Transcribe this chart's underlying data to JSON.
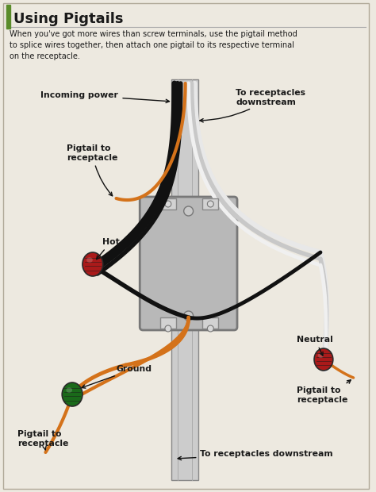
{
  "title": "Using Pigtails",
  "subtitle": "When you've got more wires than screw terminals, use the pigtail method\nto splice wires together, then attach one pigtail to its respective terminal\non the receptacle.",
  "bg_color": "#ede9e0",
  "title_color": "#1a1a1a",
  "text_color": "#1a1a1a",
  "accent_color": "#5a8c2a",
  "colors": {
    "black_wire": "#111111",
    "orange_wire": "#d4721a",
    "white_wire": "#c8c8c8",
    "white_wire2": "#e8e8e8",
    "box_fill": "#b8b8b8",
    "box_edge": "#787878",
    "conduit_fill": "#cccccc",
    "conduit_edge": "#888888",
    "red_nut": "#aa1a1a",
    "green_nut": "#1a6a1a",
    "screw_fill": "#d8d8d8"
  },
  "labels": {
    "incoming_power": "Incoming power",
    "pigtail_tl": "Pigtail to\nreceptacle",
    "hot": "Hot",
    "ground": "Ground",
    "pigtail_bl": "Pigtail to\nreceptacle",
    "receptacles_tr": "To receptacles\ndownstream",
    "neutral": "Neutral",
    "pigtail_br": "Pigtail to\nreceptacle",
    "receptacles_bottom": "To receptacles downstream"
  }
}
